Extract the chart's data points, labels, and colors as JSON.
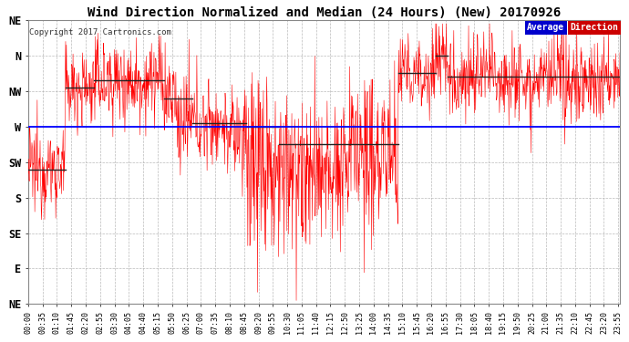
{
  "title": "Wind Direction Normalized and Median (24 Hours) (New) 20170926",
  "copyright": "Copyright 2017 Cartronics.com",
  "bg_color": "#ffffff",
  "plot_bg_color": "#ffffff",
  "grid_color": "#aaaaaa",
  "y_labels": [
    "NE",
    "N",
    "NW",
    "W",
    "SW",
    "S",
    "SE",
    "E",
    "NE"
  ],
  "y_values": [
    8,
    7,
    6,
    5,
    4,
    3,
    2,
    1,
    0
  ],
  "y_min": 0,
  "y_max": 8,
  "average_line_y": 5.0,
  "average_line_color": "#0000ff",
  "legend_average_bg": "#0000cc",
  "legend_direction_bg": "#cc0000",
  "legend_text_color": "#ffffff",
  "title_fontsize": 10,
  "tick_fontsize": 6,
  "tick_interval_minutes": 35
}
